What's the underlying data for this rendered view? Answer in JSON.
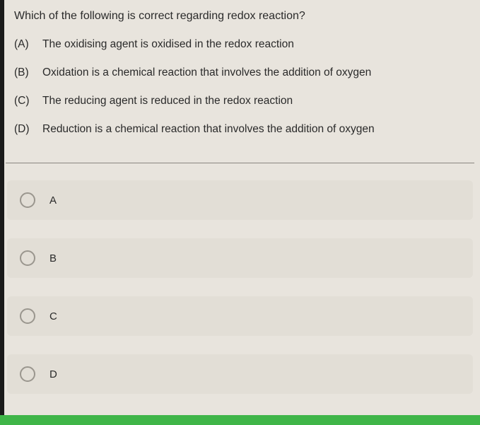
{
  "question": {
    "prompt": "Which of the following is correct regarding redox reaction?",
    "options": [
      {
        "letter": "(A)",
        "text": "The oxidising agent is oxidised in the redox reaction"
      },
      {
        "letter": "(B)",
        "text": "Oxidation is a chemical reaction that involves the addition of oxygen"
      },
      {
        "letter": "(C)",
        "text": "The reducing agent is reduced in the redox reaction"
      },
      {
        "letter": "(D)",
        "text": "Reduction is a chemical reaction that involves the addition of oxygen"
      }
    ]
  },
  "answers": [
    {
      "label": "A"
    },
    {
      "label": "B"
    },
    {
      "label": "C"
    },
    {
      "label": "D"
    }
  ],
  "colors": {
    "page_bg": "#e8e4dd",
    "choice_bg": "#e2ded6",
    "radio_border": "#9a968e",
    "divider": "#8a8680",
    "text": "#2a2a2a",
    "bottom_bar": "#3fb548",
    "left_edge": "#1a1a1a"
  }
}
